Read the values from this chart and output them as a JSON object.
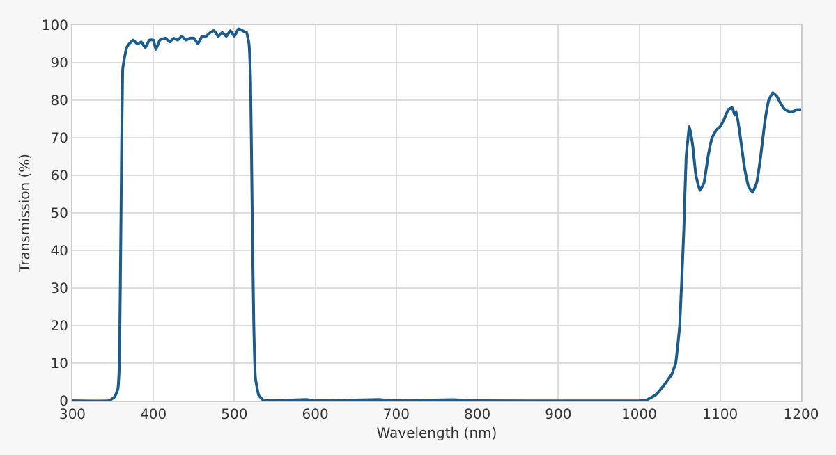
{
  "chart_data": {
    "type": "line",
    "xlabel": "Wavelength (nm)",
    "ylabel": "Transmission (%)",
    "x": [
      300,
      345,
      352,
      356,
      358,
      360,
      362,
      364,
      367,
      370,
      375,
      380,
      385,
      390,
      395,
      400,
      403,
      408,
      415,
      420,
      425,
      430,
      435,
      440,
      445,
      450,
      455,
      460,
      465,
      470,
      475,
      480,
      485,
      490,
      495,
      500,
      505,
      510,
      515,
      518,
      520,
      522,
      524,
      526,
      530,
      535,
      540,
      590,
      600,
      680,
      700,
      770,
      800,
      1000,
      1010,
      1020,
      1030,
      1040,
      1045,
      1050,
      1055,
      1058,
      1062,
      1066,
      1070,
      1075,
      1080,
      1085,
      1090,
      1095,
      1100,
      1105,
      1110,
      1115,
      1118,
      1120,
      1125,
      1130,
      1135,
      1140,
      1145,
      1150,
      1155,
      1160,
      1165,
      1170,
      1175,
      1180,
      1185,
      1190,
      1195,
      1200
    ],
    "series": [
      {
        "color": "#1b5c8e",
        "values": [
          0,
          0,
          1,
          3,
          10,
          50,
          88,
          91,
          94,
          95,
          96,
          95,
          95.5,
          94,
          96,
          96,
          93.5,
          96,
          96.5,
          95.5,
          96.5,
          96,
          97,
          96,
          96.5,
          96.5,
          95,
          97,
          97,
          98,
          98.5,
          97,
          98,
          97,
          98.5,
          97,
          99,
          98.5,
          98,
          95,
          85,
          50,
          20,
          6,
          1.5,
          0.3,
          0,
          0.3,
          0,
          0.3,
          0,
          0.3,
          0,
          0,
          0.3,
          1.5,
          4,
          7,
          10,
          20,
          45,
          65,
          73,
          68,
          60,
          56,
          58,
          65,
          70,
          72,
          73,
          75,
          77.5,
          78,
          76,
          77,
          70,
          62,
          57,
          55.5,
          58,
          65,
          74,
          80,
          82,
          81,
          79,
          77.5,
          77,
          77,
          77.5,
          77.5
        ]
      }
    ],
    "xlim": [
      300,
      1200
    ],
    "xticks": [
      300,
      400,
      500,
      600,
      700,
      800,
      900,
      1000,
      1100,
      1200
    ],
    "ylim": [
      0,
      100
    ],
    "yticks": [
      0,
      10,
      20,
      30,
      40,
      50,
      60,
      70,
      80,
      90,
      100
    ],
    "grid": true,
    "legend": false,
    "marker": "none",
    "line_style": "solid"
  }
}
